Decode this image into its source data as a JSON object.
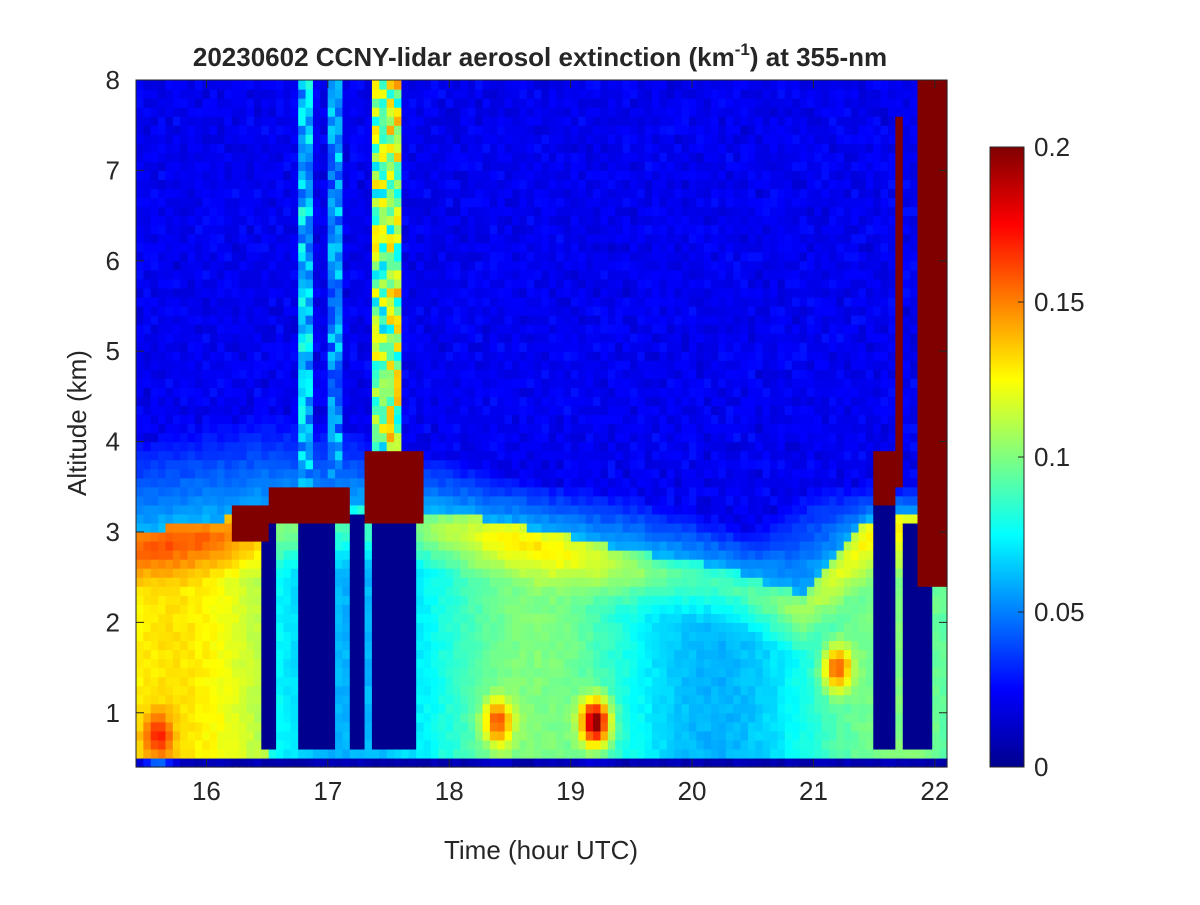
{
  "chart_data": {
    "type": "heatmap",
    "title_main": "20230602 CCNY-lidar aerosol extinction (km",
    "title_sup": "-1",
    "title_tail": ") at 355-nm",
    "xlabel": "Time (hour UTC)",
    "ylabel": "Altitude (km)",
    "xlim": [
      15.42,
      22.1
    ],
    "ylim": [
      0.4,
      8
    ],
    "xticks": [
      16,
      17,
      18,
      19,
      20,
      21,
      22
    ],
    "yticks": [
      1,
      2,
      3,
      4,
      5,
      6,
      7,
      8
    ],
    "colormap": "jet",
    "colorbar": {
      "min": 0,
      "max": 0.2,
      "ticks": [
        0,
        0.05,
        0.1,
        0.15,
        0.2
      ],
      "tick_labels": [
        "0",
        "0.05",
        "0.1",
        "0.15",
        "0.2"
      ]
    },
    "features": {
      "boundary_layer_top_km": [
        [
          15.42,
          3.0
        ],
        [
          16.4,
          3.2
        ],
        [
          17.5,
          3.3
        ],
        [
          18.5,
          3.1
        ],
        [
          19.5,
          2.8
        ],
        [
          20.3,
          2.6
        ],
        [
          20.9,
          2.3
        ],
        [
          21.5,
          3.2
        ]
      ],
      "residual_layer_top_km": [
        [
          15.42,
          4.0
        ],
        [
          16.5,
          4.3
        ],
        [
          17.5,
          4.0
        ],
        [
          18.5,
          3.6
        ],
        [
          19.5,
          3.4
        ],
        [
          20.5,
          3.0
        ],
        [
          21.0,
          3.5
        ]
      ],
      "cloud_segments": [
        {
          "t0": 16.2,
          "t1": 16.5,
          "z0": 2.9,
          "z1": 3.3
        },
        {
          "t0": 16.5,
          "t1": 17.2,
          "z0": 3.1,
          "z1": 3.5
        },
        {
          "t0": 17.3,
          "t1": 17.8,
          "z0": 3.05,
          "z1": 3.9
        },
        {
          "t0": 21.5,
          "t1": 21.7,
          "z0": 3.3,
          "z1": 3.9
        },
        {
          "t0": 21.65,
          "t1": 21.75,
          "z0": 3.5,
          "z1": 7.6
        },
        {
          "t0": 21.85,
          "t1": 22.1,
          "z0": 2.4,
          "z1": 8.0
        }
      ],
      "attenuated_columns": [
        {
          "t0": 16.45,
          "t1": 16.6,
          "z1": 3.1
        },
        {
          "t0": 16.75,
          "t1": 17.05,
          "z1": 3.1
        },
        {
          "t0": 17.2,
          "t1": 17.3,
          "z1": 3.2
        },
        {
          "t0": 17.38,
          "t1": 17.7,
          "z1": 3.05
        },
        {
          "t0": 21.5,
          "t1": 21.7,
          "z1": 3.3
        },
        {
          "t0": 21.75,
          "t1": 21.95,
          "z1": 3.1
        }
      ],
      "high_plumes": [
        {
          "t": 16.83,
          "width": 0.06,
          "value": 0.07
        },
        {
          "t": 17.07,
          "width": 0.06,
          "value": 0.06
        },
        {
          "t": 17.42,
          "width": 0.05,
          "value": 0.11
        },
        {
          "t": 17.55,
          "width": 0.05,
          "value": 0.12
        }
      ],
      "near_surface_hotspots": [
        {
          "t": 15.6,
          "z": 0.75,
          "value": 0.17
        },
        {
          "t": 18.4,
          "z": 0.9,
          "value": 0.16
        },
        {
          "t": 19.2,
          "z": 0.9,
          "value": 0.2
        },
        {
          "t": 21.2,
          "z": 1.5,
          "value": 0.16
        }
      ]
    }
  }
}
